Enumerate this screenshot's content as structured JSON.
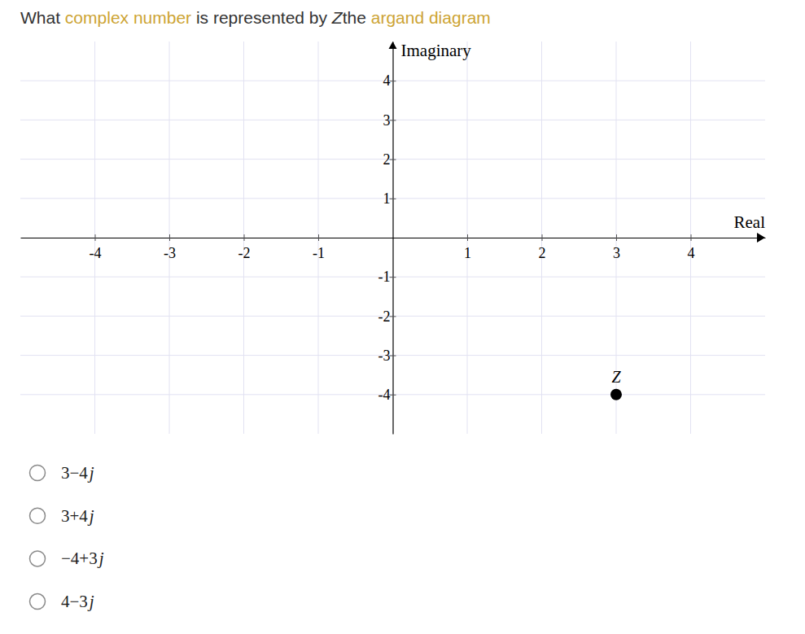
{
  "question": [
    {
      "text": "What ",
      "style": "plain"
    },
    {
      "text": "complex number",
      "style": "link"
    },
    {
      "text": " is represented by ",
      "style": "plain"
    },
    {
      "text": "Z",
      "style": "italic"
    },
    {
      "text": "the ",
      "style": "plain"
    },
    {
      "text": "argand diagram",
      "style": "link"
    }
  ],
  "chart_data": {
    "type": "scatter",
    "x_label": "Real",
    "y_label": "Imaginary",
    "x": [
      3
    ],
    "values": [
      -4
    ],
    "point_labels": [
      "Z"
    ],
    "color": "#000000",
    "marker": "circle",
    "xlim": [
      -5,
      5
    ],
    "ylim": [
      -5,
      5
    ],
    "xticks": [
      -4,
      -3,
      -2,
      -1,
      1,
      2,
      3,
      4
    ],
    "yticks": [
      -4,
      -3,
      -2,
      -1,
      1,
      2,
      3,
      4
    ],
    "grid": true
  },
  "options": [
    "3−4j",
    "3+4j",
    "−4+3j",
    "4−3j"
  ]
}
